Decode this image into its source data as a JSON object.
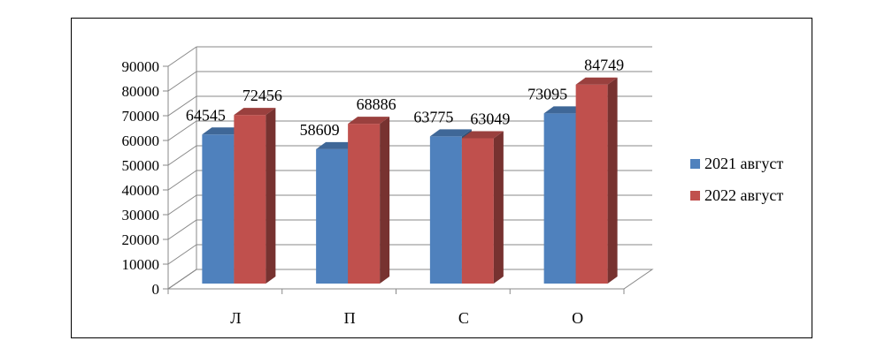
{
  "chart_data": {
    "type": "bar",
    "style": "3d-clustered-column",
    "categories": [
      "Л",
      "П",
      "С",
      "О"
    ],
    "series": [
      {
        "name": "2021 август",
        "color": "#4F81BD",
        "values": [
          64545,
          58609,
          63775,
          73095
        ]
      },
      {
        "name": "2022 август",
        "color": "#C0504D",
        "values": [
          72456,
          68886,
          63049,
          84749
        ]
      }
    ],
    "y_ticks": [
      "0",
      "10000",
      "20000",
      "30000",
      "40000",
      "50000",
      "60000",
      "70000",
      "80000",
      "90000"
    ],
    "ylim": [
      0,
      90000
    ],
    "grid": true,
    "legend_position": "right"
  }
}
